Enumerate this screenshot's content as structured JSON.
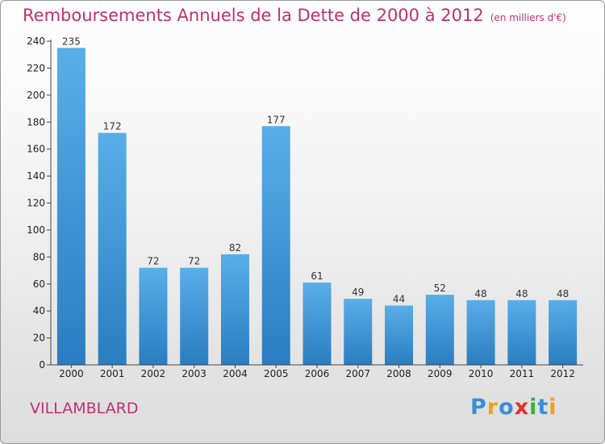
{
  "header": {
    "title": "Remboursements Annuels de la Dette de 2000 à 2012",
    "subtitle": "(en milliers d'€)"
  },
  "commune": "VILLAMBLARD",
  "logo": {
    "letters": [
      {
        "char": "P",
        "color": "#3a8fd6"
      },
      {
        "char": "r",
        "color": "#f2a01c"
      },
      {
        "char": "o",
        "color": "#3a8fd6"
      },
      {
        "char": "x",
        "color": "#e0322d"
      },
      {
        "char": "i",
        "color": "#3cae3c"
      },
      {
        "char": "t",
        "color": "#3a8fd6"
      },
      {
        "char": "i",
        "color": "#f2a01c"
      }
    ]
  },
  "chart_data": {
    "type": "bar",
    "categories": [
      "2000",
      "2001",
      "2002",
      "2003",
      "2004",
      "2005",
      "2006",
      "2007",
      "2008",
      "2009",
      "2010",
      "2011",
      "2012"
    ],
    "values": [
      235,
      172,
      72,
      72,
      82,
      177,
      61,
      49,
      44,
      52,
      48,
      48,
      48
    ],
    "ylim": [
      0,
      240
    ],
    "yticks": [
      0,
      20,
      40,
      60,
      80,
      100,
      120,
      140,
      160,
      180,
      200,
      220,
      240
    ],
    "grid": false,
    "bar_color_top": "#5aaee8",
    "bar_color_bottom": "#2a7dc0"
  }
}
